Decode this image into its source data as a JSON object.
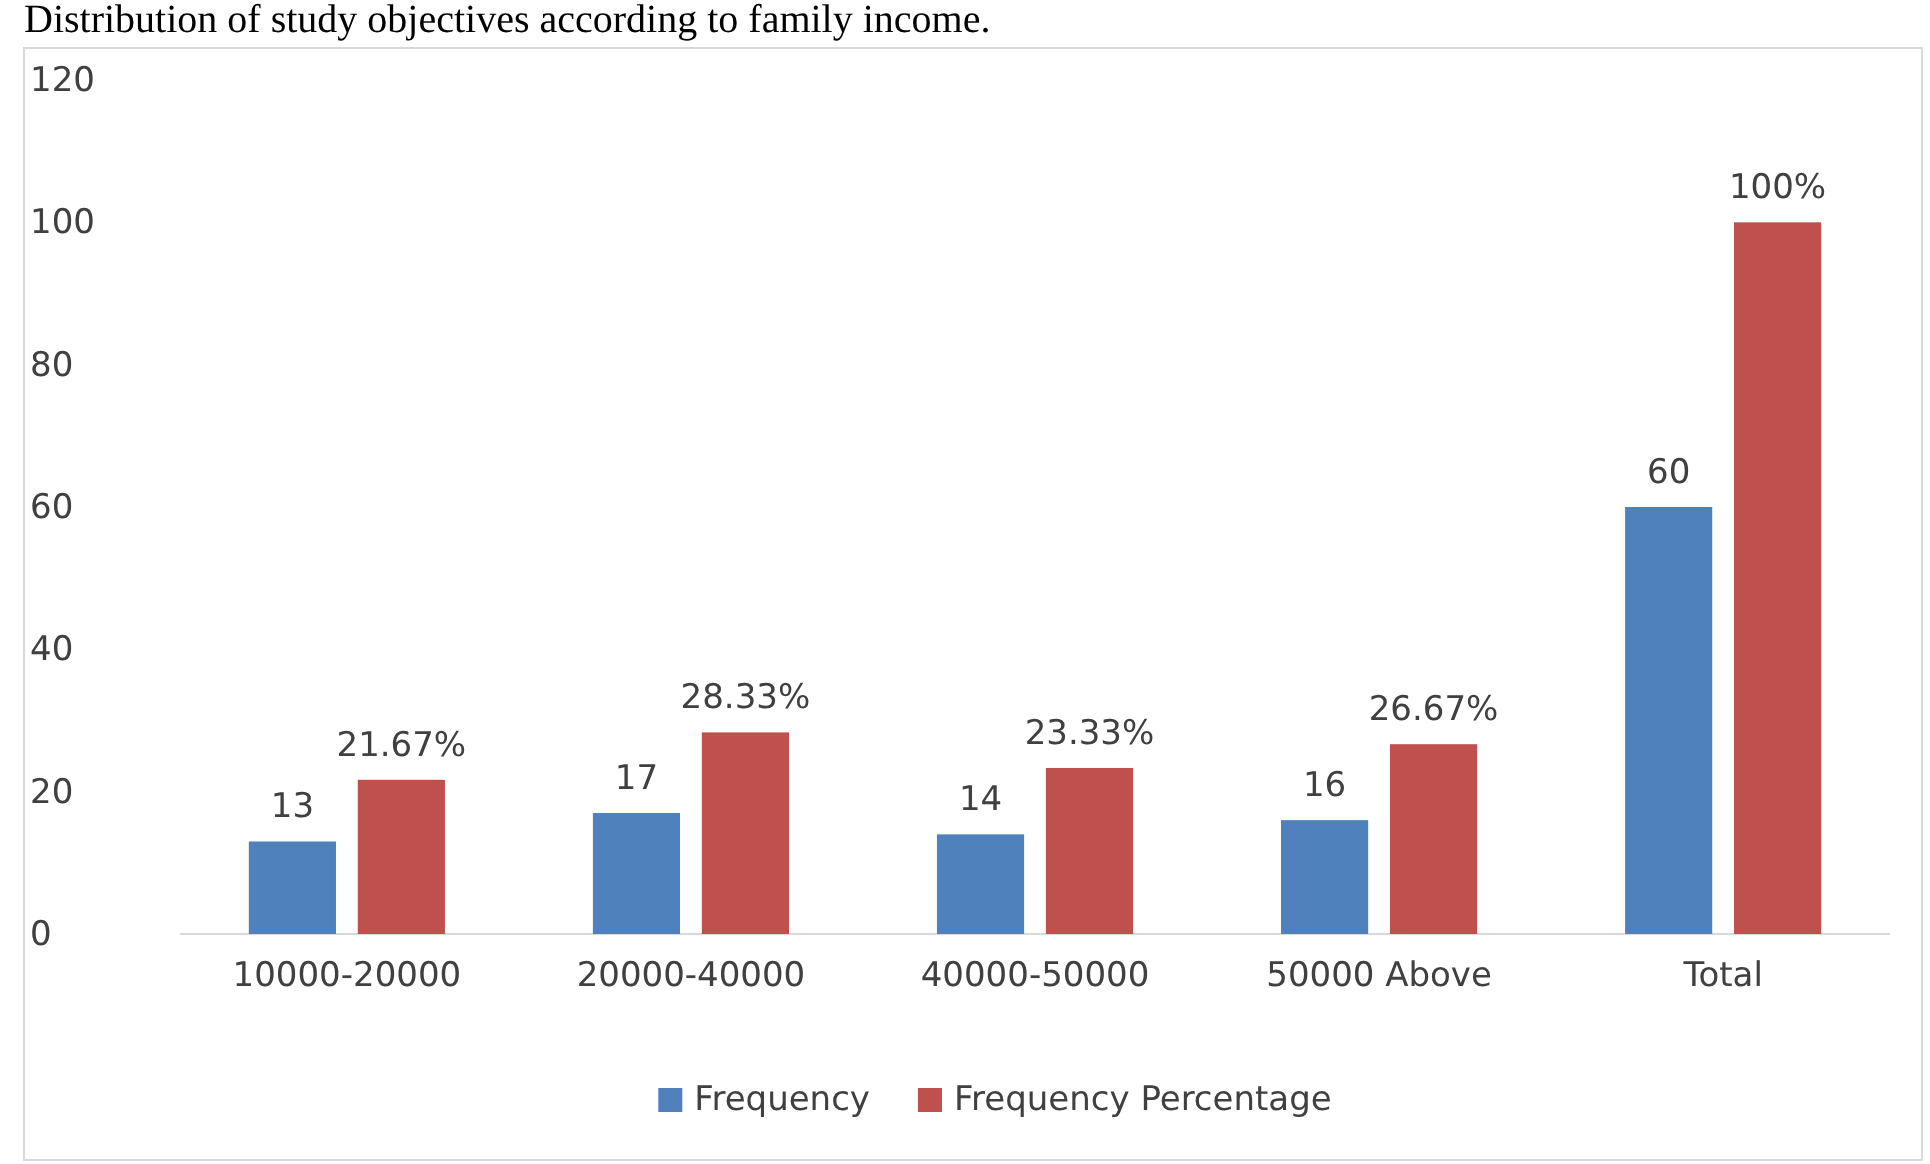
{
  "chart_data": {
    "type": "bar",
    "title": "Distribution of study objectives according to family income.",
    "categories": [
      "10000-20000",
      "20000-40000",
      "40000-50000",
      "50000 Above",
      "Total"
    ],
    "series": [
      {
        "name": "Frequency",
        "color": "#4f81bd",
        "values": [
          13,
          17,
          14,
          16,
          60
        ],
        "value_labels": [
          "13",
          "17",
          "14",
          "16",
          "60"
        ]
      },
      {
        "name": "Frequency Percentage",
        "color": "#c0504d",
        "values": [
          21.67,
          28.33,
          23.33,
          26.67,
          100
        ],
        "value_labels": [
          "21.67%",
          "28.33%",
          "23.33%",
          "26.67%",
          "100%"
        ]
      }
    ],
    "ylim": [
      0,
      120
    ],
    "yticks": [
      0,
      20,
      40,
      60,
      80,
      100,
      120
    ],
    "grid": false,
    "legend": "bottom"
  }
}
